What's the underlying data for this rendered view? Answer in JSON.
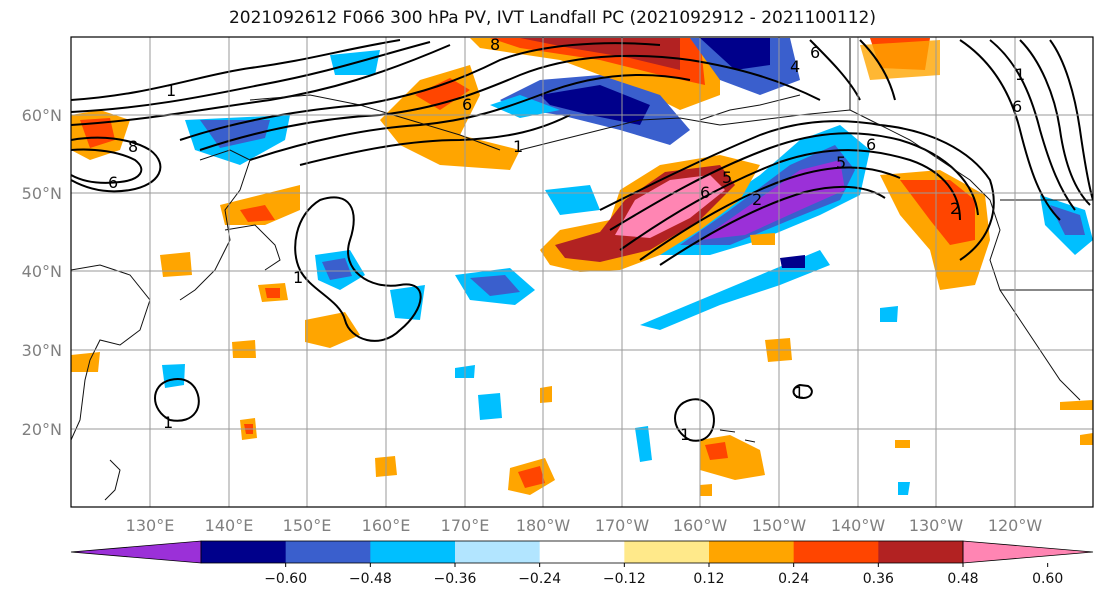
{
  "title": "2021092612 F066 300 hPa PV, IVT Landfall PC (2021092912 - 2021100112)",
  "map": {
    "lat_labels": [
      "60°N",
      "50°N",
      "40°N",
      "30°N",
      "20°N"
    ],
    "lon_labels": [
      "130°E",
      "140°E",
      "150°E",
      "160°E",
      "170°E",
      "180°W",
      "170°W",
      "160°W",
      "150°W",
      "140°W",
      "130°W",
      "120°W"
    ],
    "contour_labels": [
      "1",
      "6",
      "1",
      "8",
      "6",
      "5",
      "5",
      "6",
      "2",
      "1",
      "1",
      "6",
      "1",
      "4",
      "6",
      "6",
      "2",
      "1",
      "8",
      "1"
    ]
  },
  "colorbar": {
    "colors": [
      "#9b30d8",
      "#00008b",
      "#3a5fcd",
      "#00bfff",
      "#b2e5ff",
      "#ffffff",
      "#ffe98a",
      "#ffa500",
      "#ff4500",
      "#b22222",
      "#ff85b3"
    ],
    "tick_labels": [
      "−0.60",
      "−0.48",
      "−0.36",
      "−0.24",
      "−0.12",
      "0.12",
      "0.24",
      "0.36",
      "0.48",
      "0.60"
    ]
  },
  "colors": {
    "land": "#111111",
    "contour": "#000000",
    "grid": "#9a9a9a",
    "tick_text": "#808080"
  }
}
